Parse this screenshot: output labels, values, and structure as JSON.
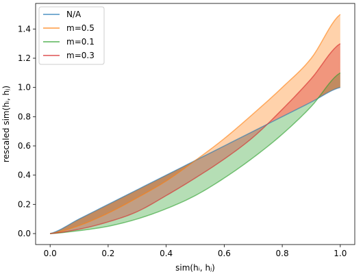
{
  "chart_data": {
    "type": "line",
    "title": "",
    "xlabel": "sim(hᵢ, hⱼ)",
    "ylabel": "rescaled sim(hᵢ, hⱼ)",
    "xlim": [
      -0.05,
      1.05
    ],
    "ylim": [
      -0.075,
      1.575
    ],
    "xticks": [
      "0.0",
      "0.2",
      "0.4",
      "0.6",
      "0.8",
      "1.0"
    ],
    "yticks": [
      "0.0",
      "0.2",
      "0.4",
      "0.6",
      "0.8",
      "1.0",
      "1.2",
      "1.4"
    ],
    "grid": false,
    "legend_position": "top-left",
    "x": [
      0.0,
      0.1,
      0.2,
      0.3,
      0.4,
      0.5,
      0.6,
      0.7,
      0.8,
      0.9,
      1.0
    ],
    "series": [
      {
        "name": "N/A",
        "color": "#1f77b4",
        "values": [
          0.0,
          0.1,
          0.2,
          0.3,
          0.4,
          0.5,
          0.6,
          0.7,
          0.8,
          0.9,
          1.0
        ]
      },
      {
        "name": "m=0.5",
        "color": "#ff7f0e",
        "values": [
          0.0,
          0.055,
          0.14,
          0.245,
          0.36,
          0.5,
          0.65,
          0.82,
          1.0,
          1.2,
          1.5
        ]
      },
      {
        "name": "m=0.1",
        "color": "#2ca02c",
        "values": [
          0.0,
          0.02,
          0.05,
          0.1,
          0.17,
          0.26,
          0.38,
          0.52,
          0.68,
          0.87,
          1.1
        ]
      },
      {
        "name": "m=0.3",
        "color": "#d62728",
        "values": [
          0.0,
          0.03,
          0.08,
          0.15,
          0.26,
          0.38,
          0.51,
          0.66,
          0.85,
          1.06,
          1.3
        ]
      }
    ],
    "fill_alpha": 0.35
  }
}
